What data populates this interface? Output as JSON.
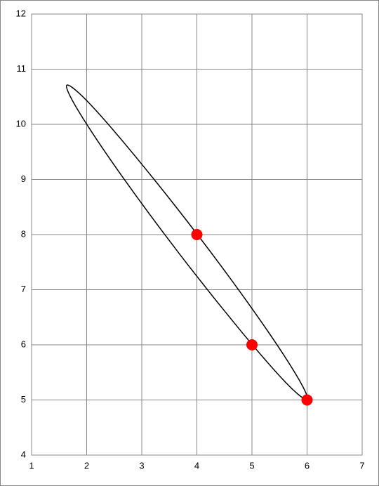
{
  "chart_data": {
    "type": "scatter",
    "xlim": [
      1,
      7
    ],
    "xticks": [
      1,
      2,
      3,
      4,
      5,
      6,
      7
    ],
    "ylim": [
      4,
      12
    ],
    "yticks": [
      4,
      5,
      6,
      7,
      8,
      9,
      10,
      11,
      12
    ],
    "grid": true,
    "series": [
      {
        "type": "line",
        "color": "#000000",
        "closed": true,
        "x": [
          6.0,
          5.8,
          5.07,
          4.01,
          2.89,
          2.03,
          1.64,
          1.84,
          2.57,
          3.63,
          4.75,
          5.61
        ],
        "y": [
          5.01,
          5.46,
          6.56,
          8.0,
          9.41,
          10.4,
          10.71,
          10.26,
          9.16,
          7.72,
          6.31,
          5.32
        ]
      },
      {
        "type": "scatter",
        "color": "#ff0000",
        "x": [
          4,
          5,
          6
        ],
        "y": [
          8,
          6,
          5
        ]
      }
    ]
  }
}
